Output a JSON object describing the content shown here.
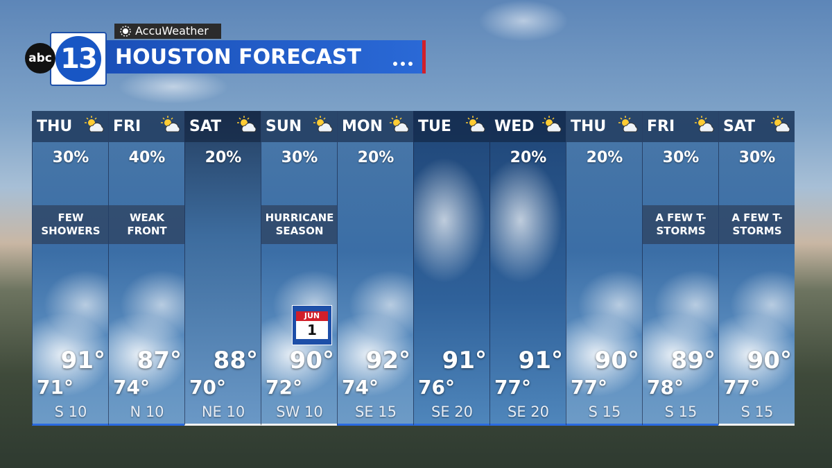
{
  "header": {
    "network": "abc",
    "channel": "13",
    "sponsor": "AccuWeather",
    "title": "HOUSTON FORECAST"
  },
  "days": [
    {
      "day": "THU",
      "precip": "30%",
      "note": "FEW SHOWERS",
      "high": "91°",
      "low": "71°",
      "wind": "S 10"
    },
    {
      "day": "FRI",
      "precip": "40%",
      "note": "WEAK FRONT",
      "high": "87°",
      "low": "74°",
      "wind": "N 10"
    },
    {
      "day": "SAT",
      "precip": "20%",
      "high": "88°",
      "low": "70°",
      "wind": "NE 10"
    },
    {
      "day": "SUN",
      "precip": "30%",
      "note": "HURRICANE SEASON",
      "high": "90°",
      "low": "72°",
      "wind": "SW 10",
      "calendar": {
        "month": "JUN",
        "date": "1"
      }
    },
    {
      "day": "MON",
      "precip": "20%",
      "high": "92°",
      "low": "74°",
      "wind": "SE 15"
    },
    {
      "day": "TUE",
      "high": "91°",
      "low": "76°",
      "wind": "SE 20"
    },
    {
      "day": "WED",
      "precip": "20%",
      "high": "91°",
      "low": "77°",
      "wind": "SE 20"
    },
    {
      "day": "THU",
      "precip": "20%",
      "high": "90°",
      "low": "77°",
      "wind": "S 15"
    },
    {
      "day": "FRI",
      "precip": "30%",
      "note": "A FEW T-STORMS",
      "high": "89°",
      "low": "78°",
      "wind": "S 15"
    },
    {
      "day": "SAT",
      "precip": "30%",
      "note": "A FEW T-STORMS",
      "high": "90°",
      "low": "77°",
      "wind": "S 15"
    }
  ]
}
